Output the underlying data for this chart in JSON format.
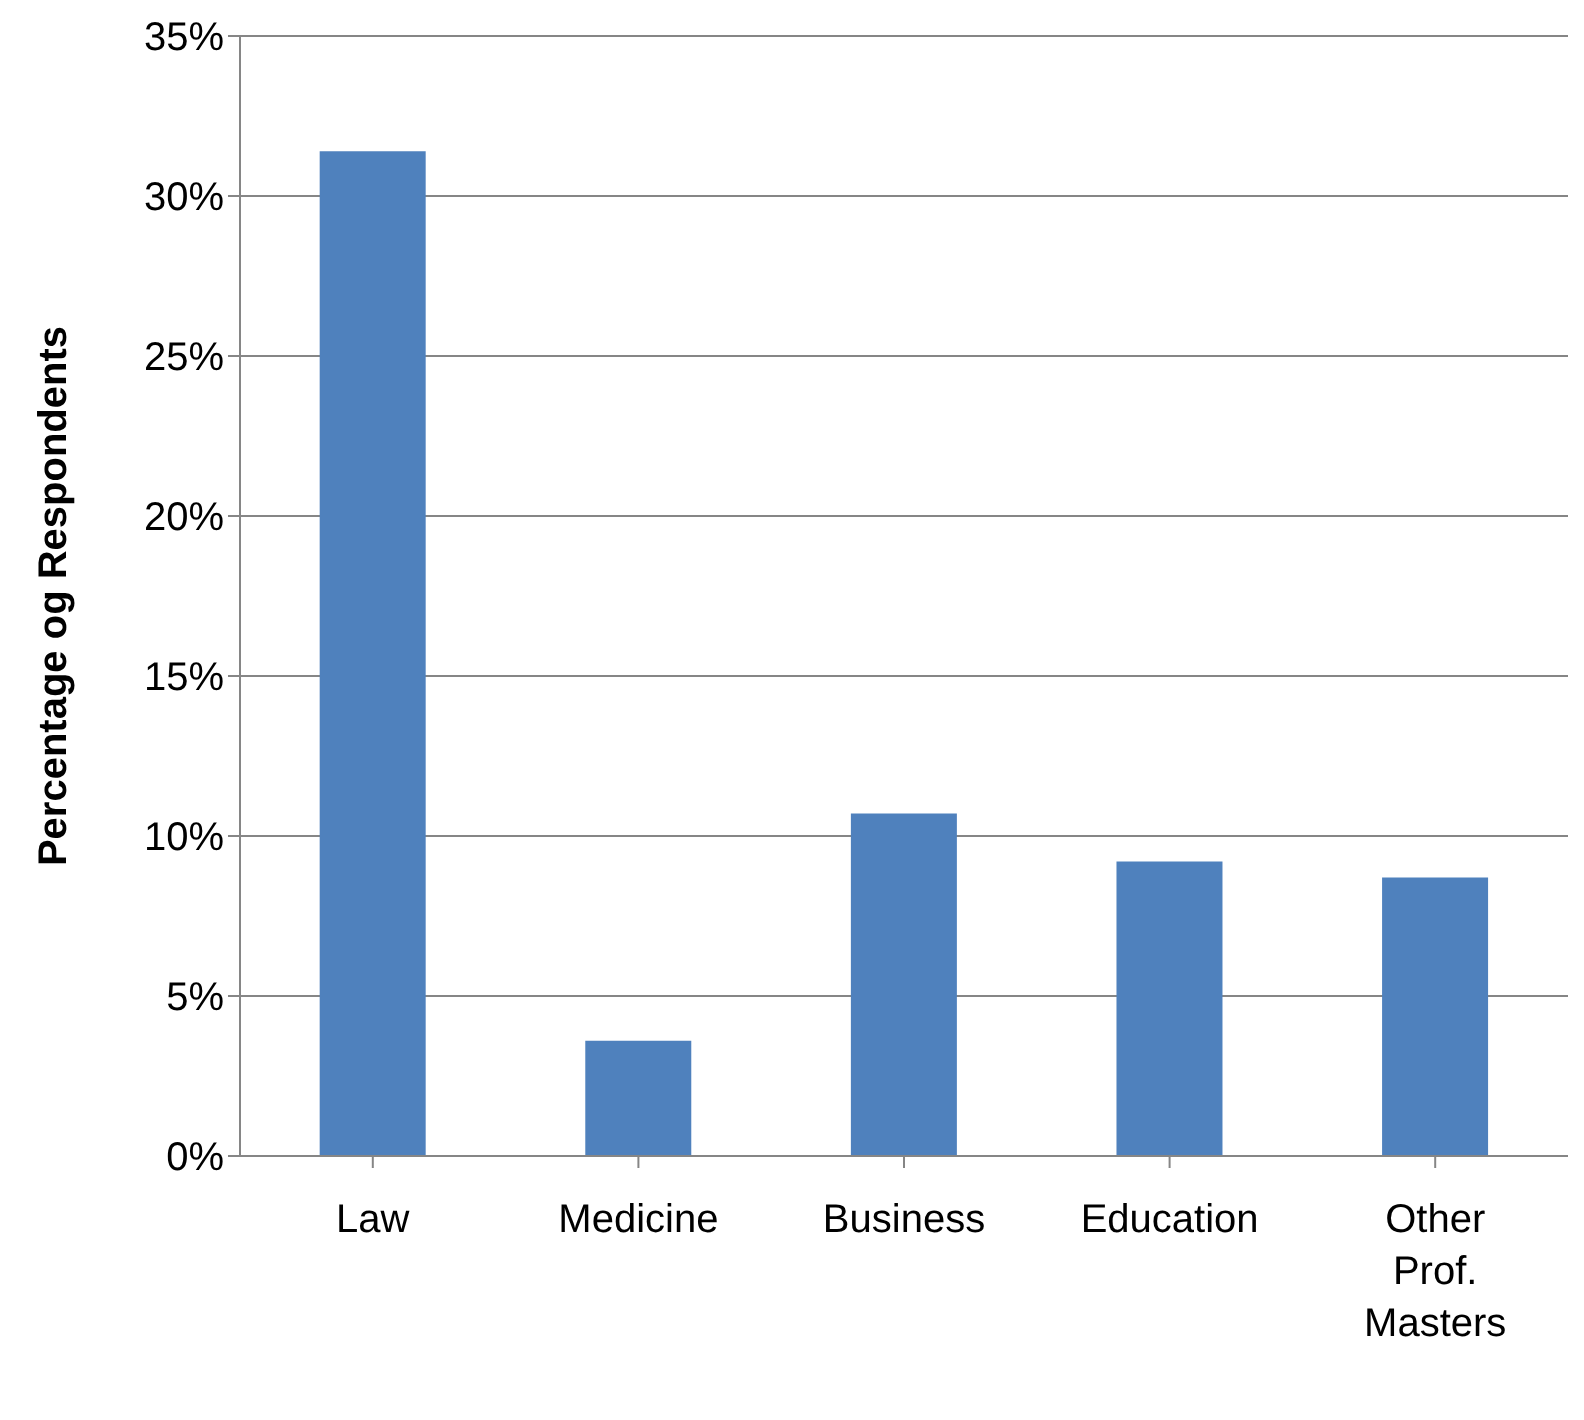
{
  "chart_data": {
    "type": "bar",
    "ylabel": "Percentage og Respondents",
    "categories": [
      "Law",
      "Medicine",
      "Business",
      "Education",
      "Other Prof. Masters"
    ],
    "values": [
      31.4,
      3.6,
      10.7,
      9.2,
      8.7
    ],
    "color": "#4f81bd",
    "ylim": [
      0,
      35
    ],
    "yticks": [
      {
        "value": 0,
        "label": "0%"
      },
      {
        "value": 5,
        "label": "5%"
      },
      {
        "value": 10,
        "label": "10%"
      },
      {
        "value": 15,
        "label": "15%"
      },
      {
        "value": 20,
        "label": "20%"
      },
      {
        "value": 25,
        "label": "25%"
      },
      {
        "value": 30,
        "label": "30%"
      },
      {
        "value": 35,
        "label": "35%"
      }
    ],
    "grid": "y",
    "legend": false
  }
}
